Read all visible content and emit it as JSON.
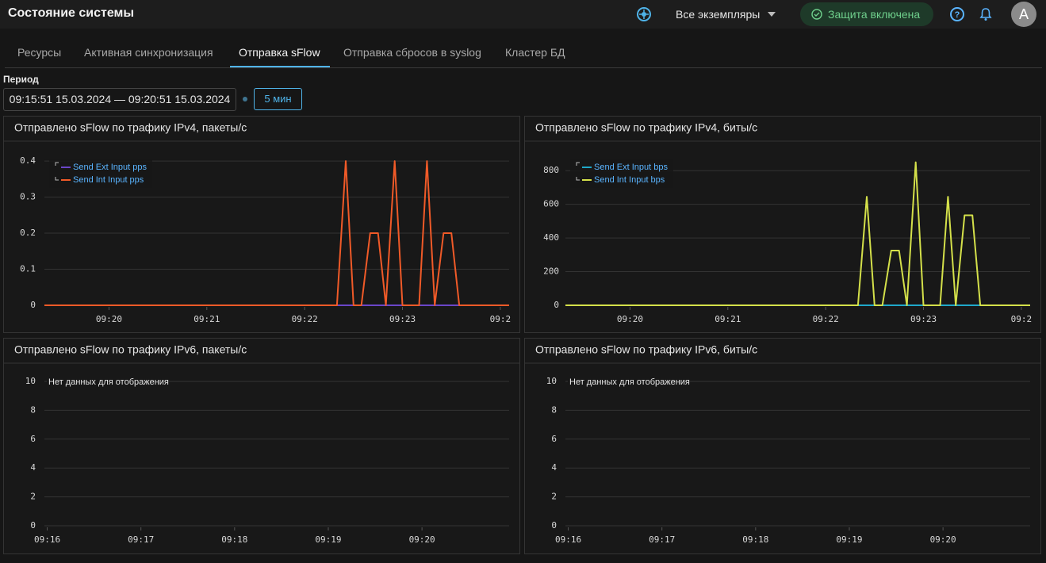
{
  "header": {
    "title": "Состояние системы",
    "instances": "Все экземпляры",
    "protection": "Защита включена",
    "avatar": "A"
  },
  "tabs": {
    "items": [
      "Ресурсы",
      "Активная синхронизация",
      "Отправка sFlow",
      "Отправка сбросов в syslog",
      "Кластер БД"
    ],
    "active": 2
  },
  "period": {
    "label": "Период",
    "range": "09:15:51 15.03.2024 — 09:20:51 15.03.2024",
    "button": "5 мин"
  },
  "chart_data": [
    {
      "type": "line",
      "title": "Отправлено sFlow по трафику IPv4, пакеты/с",
      "legend": "top-left",
      "grid": true,
      "x": [
        19.34,
        22.25,
        22.33,
        22.42,
        22.5,
        22.58,
        22.67,
        22.75,
        22.83,
        22.92,
        23.0,
        23.08,
        23.17,
        23.25,
        23.33,
        23.42,
        23.5,
        23.58,
        24.09
      ],
      "xlim": [
        19.34,
        24.09
      ],
      "xticks": [
        {
          "value": 20,
          "label": "09:20"
        },
        {
          "value": 21,
          "label": "09:21"
        },
        {
          "value": 22,
          "label": "09:22"
        },
        {
          "value": 23,
          "label": "09:23"
        },
        {
          "value": 24,
          "label": "09:2"
        }
      ],
      "ylim": [
        0,
        0.42
      ],
      "yticks": [
        0,
        0.1,
        0.2,
        0.3,
        0.4
      ],
      "series": [
        {
          "name": "Send Ext Input pps",
          "color": "#6b46c8",
          "values": [
            0,
            0,
            0,
            0,
            0,
            0,
            0,
            0,
            0,
            0,
            0,
            0,
            0,
            0,
            0,
            0,
            0,
            0,
            0
          ]
        },
        {
          "name": "Send Int Input pps",
          "color": "#f05a28",
          "values": [
            0,
            0,
            0,
            0.4,
            0,
            0,
            0.2,
            0.2,
            0,
            0.4,
            0,
            0,
            0,
            0.4,
            0,
            0.2,
            0.2,
            0,
            0
          ]
        }
      ]
    },
    {
      "type": "line",
      "title": "Отправлено sFlow по трафику IPv4, биты/с",
      "legend": "top-left",
      "grid": true,
      "x": [
        19.34,
        22.25,
        22.33,
        22.42,
        22.5,
        22.58,
        22.67,
        22.75,
        22.83,
        22.92,
        23.0,
        23.08,
        23.17,
        23.25,
        23.33,
        23.42,
        23.5,
        23.58,
        24.09
      ],
      "xlim": [
        19.34,
        24.09
      ],
      "xticks": [
        {
          "value": 20,
          "label": "09:20"
        },
        {
          "value": 21,
          "label": "09:21"
        },
        {
          "value": 22,
          "label": "09:22"
        },
        {
          "value": 23,
          "label": "09:23"
        },
        {
          "value": 24,
          "label": "09:2"
        }
      ],
      "ylim": [
        0,
        900
      ],
      "yticks": [
        0,
        200,
        400,
        600,
        800
      ],
      "series": [
        {
          "name": "Send Ext Input bps",
          "color": "#1fa8c9",
          "values": [
            0,
            0,
            0,
            0,
            0,
            0,
            0,
            0,
            0,
            0,
            0,
            0,
            0,
            0,
            0,
            0,
            0,
            0,
            0
          ]
        },
        {
          "name": "Send Int Input bps",
          "color": "#d4e04a",
          "values": [
            0,
            0,
            0,
            645,
            0,
            0,
            325,
            325,
            0,
            850,
            0,
            0,
            0,
            645,
            0,
            535,
            535,
            0,
            0
          ]
        }
      ]
    },
    {
      "type": "line",
      "title": "Отправлено sFlow по трафику IPv6, пакеты/с",
      "no_data_text": "Нет данных для отображения",
      "grid": true,
      "xlim": [
        15.97,
        20.93
      ],
      "xticks": [
        {
          "value": 16,
          "label": "09:16"
        },
        {
          "value": 17,
          "label": "09:17"
        },
        {
          "value": 18,
          "label": "09:18"
        },
        {
          "value": 19,
          "label": "09:19"
        },
        {
          "value": 20,
          "label": "09:20"
        }
      ],
      "ylim": [
        0,
        10
      ],
      "yticks": [
        0,
        2,
        4,
        6,
        8,
        10
      ]
    },
    {
      "type": "line",
      "title": "Отправлено sFlow по трафику IPv6, биты/с",
      "no_data_text": "Нет данных для отображения",
      "grid": true,
      "xlim": [
        15.97,
        20.93
      ],
      "xticks": [
        {
          "value": 16,
          "label": "09:16"
        },
        {
          "value": 17,
          "label": "09:17"
        },
        {
          "value": 18,
          "label": "09:18"
        },
        {
          "value": 19,
          "label": "09:19"
        },
        {
          "value": 20,
          "label": "09:20"
        }
      ],
      "ylim": [
        0,
        10
      ],
      "yticks": [
        0,
        2,
        4,
        6,
        8,
        10
      ]
    }
  ]
}
